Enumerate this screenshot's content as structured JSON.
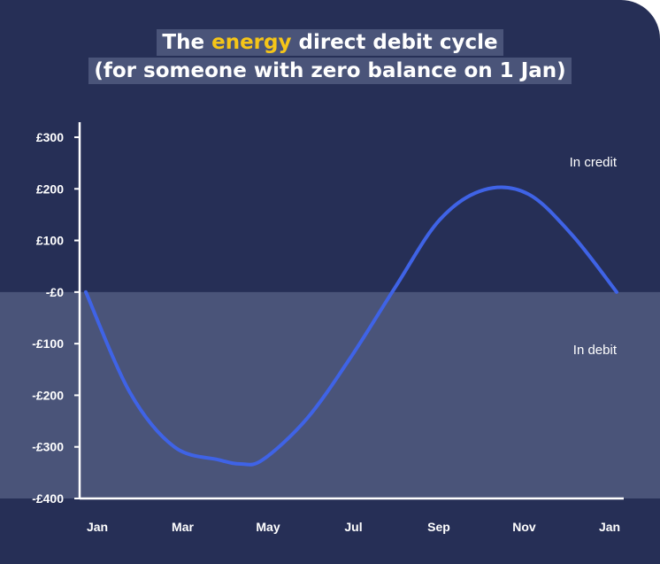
{
  "title": {
    "line1_pre": "The ",
    "line1_highlight": "energy",
    "line1_post": " direct debit cycle",
    "line2": "(for someone with zero balance on 1 Jan)"
  },
  "colors": {
    "background": "#262f56",
    "debit_band": "#4a5479",
    "line": "#3f63e6",
    "highlight": "#f5c518"
  },
  "chart_data": {
    "type": "line",
    "x_tick_labels": [
      "Jan",
      "Mar",
      "May",
      "Jul",
      "Sep",
      "Nov",
      "Jan"
    ],
    "y_tick_labels": [
      "£300",
      "£200",
      "£100",
      "-£0",
      "-£100",
      "-£200",
      "-£300",
      "-£400"
    ],
    "ylim": [
      -400,
      300
    ],
    "y_ticks": [
      300,
      200,
      100,
      0,
      -100,
      -200,
      -300,
      -400
    ],
    "regions": {
      "above_zero": "In credit",
      "below_zero": "In debit"
    },
    "series": [
      {
        "x_months": [
          0,
          1,
          2,
          3,
          3.5,
          4,
          5,
          6,
          7,
          8,
          9,
          10,
          11,
          12
        ],
        "values": [
          0,
          -195,
          -300,
          -325,
          -333,
          -325,
          -245,
          -125,
          10,
          140,
          198,
          190,
          110,
          0
        ]
      }
    ]
  }
}
